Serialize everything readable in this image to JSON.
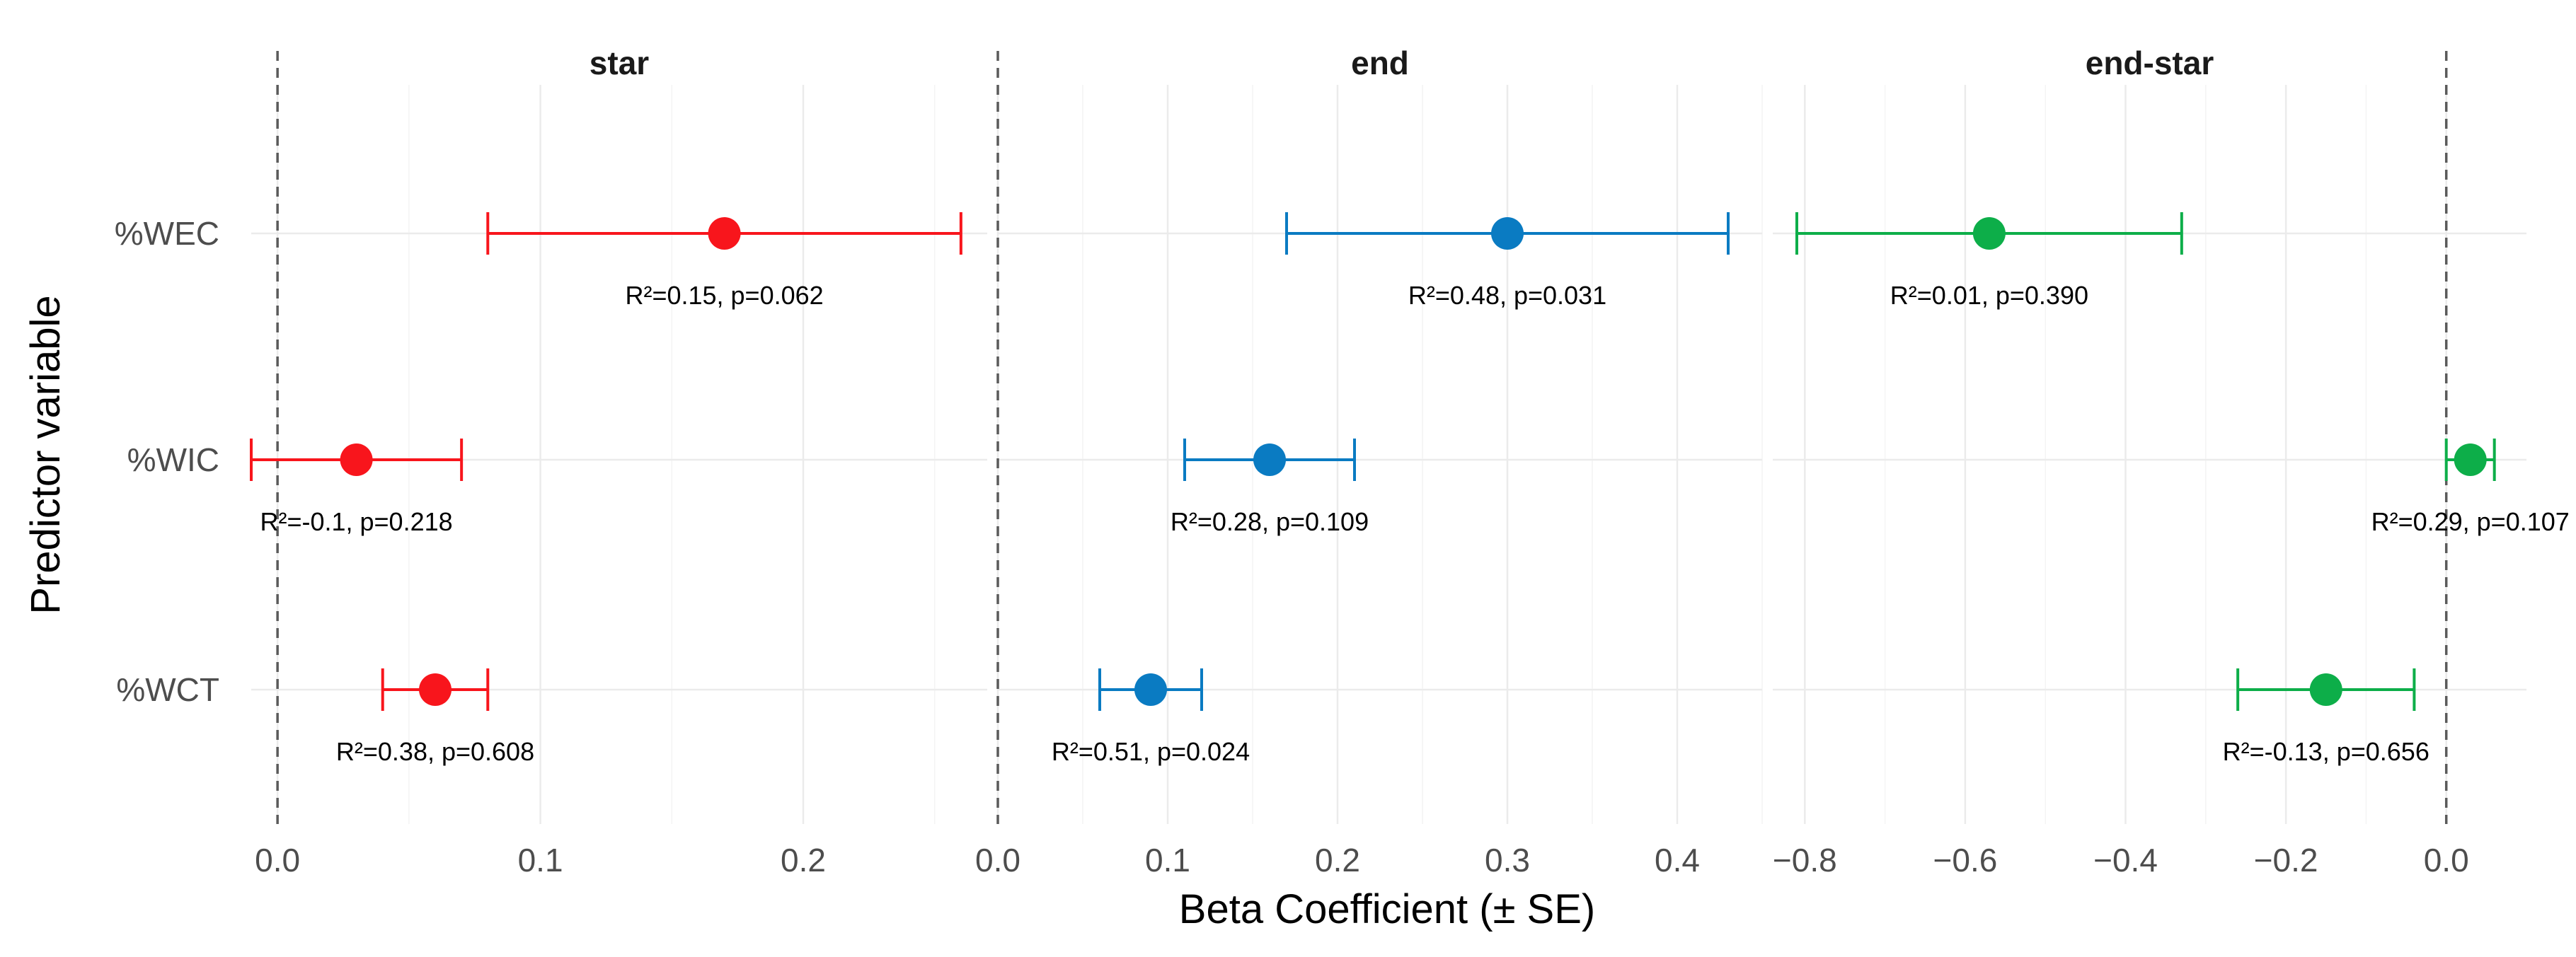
{
  "chart_data": {
    "type": "forest",
    "xlabel": "Beta Coefficient (± SE)",
    "ylabel": "Predictor variable",
    "categories": [
      "%WEC",
      "%WIC",
      "%WCT"
    ],
    "panels": [
      {
        "title": "star",
        "color": "#F8151C",
        "xlim": [
          -0.01,
          0.27
        ],
        "xticks": [
          0.0,
          0.1,
          0.2
        ],
        "tick_labels": [
          "0.0",
          "0.1",
          "0.2"
        ],
        "points": [
          {
            "predictor": "%WEC",
            "beta": 0.17,
            "lower": 0.08,
            "upper": 0.26,
            "annotation": "R²=0.15, p=0.062"
          },
          {
            "predictor": "%WIC",
            "beta": 0.03,
            "lower": -0.01,
            "upper": 0.07,
            "annotation": "R²=-0.1, p=0.218"
          },
          {
            "predictor": "%WCT",
            "beta": 0.06,
            "lower": 0.04,
            "upper": 0.08,
            "annotation": "R²=0.38, p=0.608"
          }
        ]
      },
      {
        "title": "end",
        "color": "#0A7BC2",
        "xlim": [
          0.0,
          0.45
        ],
        "xticks": [
          0.0,
          0.1,
          0.2,
          0.3,
          0.4
        ],
        "tick_labels": [
          "0.0",
          "0.1",
          "0.2",
          "0.3",
          "0.4"
        ],
        "points": [
          {
            "predictor": "%WEC",
            "beta": 0.3,
            "lower": 0.17,
            "upper": 0.43,
            "annotation": "R²=0.48, p=0.031"
          },
          {
            "predictor": "%WIC",
            "beta": 0.16,
            "lower": 0.11,
            "upper": 0.21,
            "annotation": "R²=0.28, p=0.109"
          },
          {
            "predictor": "%WCT",
            "beta": 0.09,
            "lower": 0.06,
            "upper": 0.12,
            "annotation": "R²=0.51, p=0.024"
          }
        ]
      },
      {
        "title": "end-star",
        "color": "#0DAE49",
        "xlim": [
          -0.84,
          0.1
        ],
        "xticks": [
          -0.8,
          -0.6,
          -0.4,
          -0.2,
          0.0
        ],
        "tick_labels": [
          "−0.8",
          "−0.6",
          "−0.4",
          "−0.2",
          "0.0"
        ],
        "points": [
          {
            "predictor": "%WEC",
            "beta": -0.57,
            "lower": -0.81,
            "upper": -0.33,
            "annotation": "R²=0.01, p=0.390"
          },
          {
            "predictor": "%WIC",
            "beta": 0.03,
            "lower": 0.0,
            "upper": 0.06,
            "annotation": "R²=0.29, p=0.107"
          },
          {
            "predictor": "%WCT",
            "beta": -0.15,
            "lower": -0.26,
            "upper": -0.04,
            "annotation": "R²=-0.13, p=0.656"
          }
        ]
      }
    ]
  }
}
